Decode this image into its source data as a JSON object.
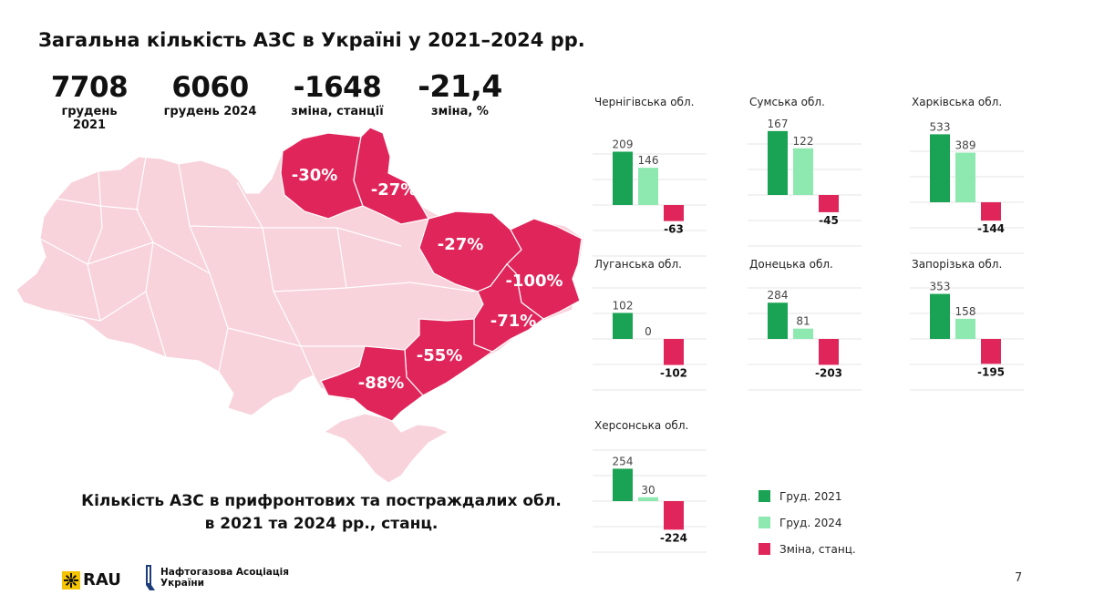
{
  "title": "Загальна кількість АЗС в Україні у 2021–2024 рр.",
  "stats": [
    {
      "value": "7708",
      "label": "грудень 2021"
    },
    {
      "value": "6060",
      "label": "грудень 2024"
    },
    {
      "value": "-1648",
      "label": "зміна, станції"
    },
    {
      "value": "-21,4",
      "label": "зміна, %"
    }
  ],
  "map_labels": [
    "-30%",
    "-27%",
    "-27%",
    "-100%",
    "-71%",
    "-55%",
    "-88%"
  ],
  "subtitle_line1": "Кількість АЗС в прифронтових та постраждалих обл.",
  "subtitle_line2": "в 2021 та 2024 рр., станц.",
  "colors": {
    "dec2021": "#1aa354",
    "dec2024": "#8ee9b0",
    "change": "#e0255a",
    "map_base": "#f8d3dc",
    "map_highlight": "#e0255a"
  },
  "chart_data": [
    {
      "type": "bar",
      "title": "Чернігівська обл.",
      "categories": [
        "Груд. 2021",
        "Груд. 2024",
        "Зміна, станц."
      ],
      "values": [
        209,
        146,
        -63
      ]
    },
    {
      "type": "bar",
      "title": "Сумська обл.",
      "categories": [
        "Груд. 2021",
        "Груд. 2024",
        "Зміна, станц."
      ],
      "values": [
        167,
        122,
        -45
      ]
    },
    {
      "type": "bar",
      "title": "Харківська обл.",
      "categories": [
        "Груд. 2021",
        "Груд. 2024",
        "Зміна, станц."
      ],
      "values": [
        533,
        389,
        -144
      ]
    },
    {
      "type": "bar",
      "title": "Луганська обл.",
      "categories": [
        "Груд. 2021",
        "Груд. 2024",
        "Зміна, станц."
      ],
      "values": [
        102,
        0,
        -102
      ]
    },
    {
      "type": "bar",
      "title": "Донецька обл.",
      "categories": [
        "Груд. 2021",
        "Груд. 2024",
        "Зміна, станц."
      ],
      "values": [
        284,
        81,
        -203
      ]
    },
    {
      "type": "bar",
      "title": "Запорізька обл.",
      "categories": [
        "Груд. 2021",
        "Груд. 2024",
        "Зміна, станц."
      ],
      "values": [
        353,
        158,
        -195
      ]
    },
    {
      "type": "bar",
      "title": "Херсонська обл.",
      "categories": [
        "Груд. 2021",
        "Груд. 2024",
        "Зміна, станц."
      ],
      "values": [
        254,
        30,
        -224
      ]
    }
  ],
  "legend": [
    "Груд. 2021",
    "Груд. 2024",
    "Зміна, станц."
  ],
  "footer": {
    "rau": "RAU",
    "nau_line1": "Нафтогазова Асоціація",
    "nau_line2": "України"
  },
  "page_number": "7"
}
